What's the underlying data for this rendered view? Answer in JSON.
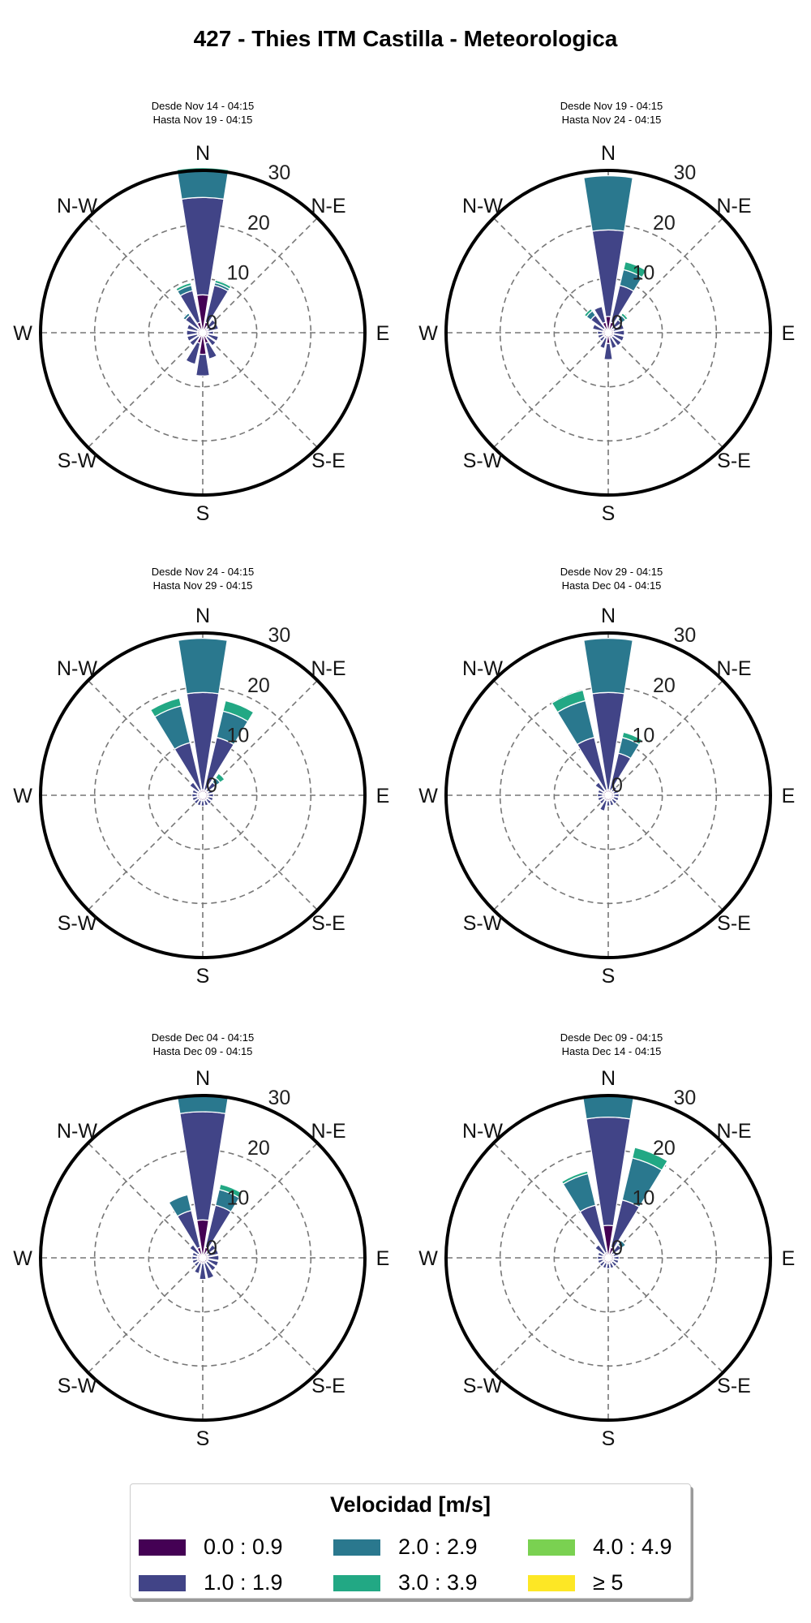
{
  "title": "427 - Thies ITM Castilla - Meteorologica",
  "legend": {
    "title": "Velocidad [m/s]",
    "items": [
      {
        "label": "0.0 : 0.9",
        "color": "#440154"
      },
      {
        "label": "1.0 : 1.9",
        "color": "#414487"
      },
      {
        "label": "2.0 : 2.9",
        "color": "#2a788e"
      },
      {
        "label": "3.0 : 3.9",
        "color": "#22a884"
      },
      {
        "label": "4.0 : 4.9",
        "color": "#7ad151"
      },
      {
        "label": "≥  5",
        "color": "#fde725"
      }
    ]
  },
  "direction_labels": [
    "N",
    "N-E",
    "E",
    "S-E",
    "S",
    "S-W",
    "W",
    "N-W"
  ],
  "radial_ticks": [
    "0",
    "10",
    "20",
    "30"
  ],
  "panels": [
    {
      "desde": "Desde Nov 14 - 04:15",
      "hasta": "Hasta Nov 19 - 04:15"
    },
    {
      "desde": "Desde Nov 19 - 04:15",
      "hasta": "Hasta Nov 24 - 04:15"
    },
    {
      "desde": "Desde Nov 24 - 04:15",
      "hasta": "Hasta Nov 29 - 04:15"
    },
    {
      "desde": "Desde Nov 29 - 04:15",
      "hasta": "Hasta Dec 04 - 04:15"
    },
    {
      "desde": "Desde Dec 04 - 04:15",
      "hasta": "Hasta Dec 09 - 04:15"
    },
    {
      "desde": "Desde Dec 09 - 04:15",
      "hasta": "Hasta Dec 14 - 04:15"
    }
  ],
  "chart_data": [
    {
      "type": "windrose",
      "rmax": 30,
      "rticks": [
        0,
        10,
        20,
        30
      ],
      "speed_bins": [
        "0.0 : 0.9",
        "1.0 : 1.9",
        "2.0 : 2.9",
        "3.0 : 3.9",
        "4.0 : 4.9",
        "≥  5"
      ],
      "directions": [
        {
          "angle": 0,
          "values": [
            7,
            18,
            5,
            0.5
          ]
        },
        {
          "angle": 22.5,
          "values": [
            2,
            7,
            0.5,
            0.5
          ]
        },
        {
          "angle": 45,
          "values": [
            1,
            2
          ]
        },
        {
          "angle": 67.5,
          "values": [
            1,
            2
          ]
        },
        {
          "angle": 90,
          "values": [
            1,
            1
          ]
        },
        {
          "angle": 112.5,
          "values": [
            1,
            2
          ]
        },
        {
          "angle": 135,
          "values": [
            1,
            2
          ]
        },
        {
          "angle": 157.5,
          "values": [
            2,
            3
          ]
        },
        {
          "angle": 180,
          "values": [
            4,
            4
          ]
        },
        {
          "angle": 202.5,
          "values": [
            2,
            4
          ]
        },
        {
          "angle": 225,
          "values": [
            1,
            2
          ]
        },
        {
          "angle": 247.5,
          "values": [
            1,
            2
          ]
        },
        {
          "angle": 270,
          "values": [
            1,
            2
          ]
        },
        {
          "angle": 292.5,
          "values": [
            1,
            2
          ]
        },
        {
          "angle": 315,
          "values": [
            1,
            3,
            0.5
          ]
        },
        {
          "angle": 337.5,
          "values": [
            2,
            6,
            1,
            0.5
          ]
        }
      ]
    },
    {
      "type": "windrose",
      "rmax": 30,
      "rticks": [
        0,
        10,
        20,
        30
      ],
      "speed_bins": [
        "0.0 : 0.9",
        "1.0 : 1.9",
        "2.0 : 2.9",
        "3.0 : 3.9",
        "4.0 : 4.9",
        "≥  5"
      ],
      "directions": [
        {
          "angle": 0,
          "values": [
            3,
            16,
            10
          ]
        },
        {
          "angle": 22.5,
          "values": [
            2,
            7,
            3,
            1.5
          ]
        },
        {
          "angle": 45,
          "values": [
            1,
            2,
            1,
            0.5
          ]
        },
        {
          "angle": 67.5,
          "values": [
            1,
            2
          ]
        },
        {
          "angle": 90,
          "values": [
            1,
            2
          ]
        },
        {
          "angle": 112.5,
          "values": [
            1,
            2
          ]
        },
        {
          "angle": 135,
          "values": [
            1,
            2
          ]
        },
        {
          "angle": 157.5,
          "values": [
            1,
            2
          ]
        },
        {
          "angle": 180,
          "values": [
            2,
            3
          ]
        },
        {
          "angle": 202.5,
          "values": [
            1,
            2
          ]
        },
        {
          "angle": 225,
          "values": [
            1,
            1
          ]
        },
        {
          "angle": 247.5,
          "values": [
            1,
            1
          ]
        },
        {
          "angle": 270,
          "values": [
            1,
            1
          ]
        },
        {
          "angle": 292.5,
          "values": [
            1,
            2
          ]
        },
        {
          "angle": 315,
          "values": [
            1,
            3,
            1,
            0.5
          ]
        },
        {
          "angle": 337.5,
          "values": [
            2,
            3
          ]
        }
      ]
    },
    {
      "type": "windrose",
      "rmax": 30,
      "rticks": [
        0,
        10,
        20,
        30
      ],
      "speed_bins": [
        "0.0 : 0.9",
        "1.0 : 1.9",
        "2.0 : 2.9",
        "3.0 : 3.9",
        "4.0 : 4.9",
        "≥  5"
      ],
      "directions": [
        {
          "angle": 0,
          "values": [
            1,
            18,
            10
          ]
        },
        {
          "angle": 22.5,
          "values": [
            1,
            10,
            5,
            2
          ]
        },
        {
          "angle": 45,
          "values": [
            1,
            2,
            1,
            1
          ]
        },
        {
          "angle": 67.5,
          "values": [
            1,
            1
          ]
        },
        {
          "angle": 90,
          "values": [
            1,
            1
          ]
        },
        {
          "angle": 112.5,
          "values": [
            1,
            1
          ]
        },
        {
          "angle": 135,
          "values": [
            1,
            1
          ]
        },
        {
          "angle": 157.5,
          "values": [
            1,
            1
          ]
        },
        {
          "angle": 180,
          "values": [
            1,
            1
          ]
        },
        {
          "angle": 202.5,
          "values": [
            1,
            1
          ]
        },
        {
          "angle": 225,
          "values": [
            1,
            1
          ]
        },
        {
          "angle": 247.5,
          "values": [
            1,
            1
          ]
        },
        {
          "angle": 270,
          "values": [
            1,
            1
          ]
        },
        {
          "angle": 292.5,
          "values": [
            1,
            1
          ]
        },
        {
          "angle": 315,
          "values": [
            1,
            2
          ]
        },
        {
          "angle": 337.5,
          "values": [
            1,
            9,
            7,
            1.5
          ]
        }
      ]
    },
    {
      "type": "windrose",
      "rmax": 30,
      "rticks": [
        0,
        10,
        20,
        30
      ],
      "speed_bins": [
        "0.0 : 0.9",
        "1.0 : 1.9",
        "2.0 : 2.9",
        "3.0 : 3.9",
        "4.0 : 4.9",
        "≥  5"
      ],
      "directions": [
        {
          "angle": 0,
          "values": [
            1,
            18,
            10
          ]
        },
        {
          "angle": 22.5,
          "values": [
            1,
            7,
            3,
            1
          ]
        },
        {
          "angle": 45,
          "values": [
            1,
            1
          ]
        },
        {
          "angle": 67.5,
          "values": [
            1,
            1
          ]
        },
        {
          "angle": 90,
          "values": [
            1,
            1
          ]
        },
        {
          "angle": 112.5,
          "values": [
            1,
            1
          ]
        },
        {
          "angle": 135,
          "values": [
            1,
            1
          ]
        },
        {
          "angle": 157.5,
          "values": [
            1,
            1
          ]
        },
        {
          "angle": 180,
          "values": [
            1,
            1
          ]
        },
        {
          "angle": 202.5,
          "values": [
            1,
            2
          ]
        },
        {
          "angle": 225,
          "values": [
            1,
            1
          ]
        },
        {
          "angle": 247.5,
          "values": [
            1,
            1
          ]
        },
        {
          "angle": 270,
          "values": [
            1,
            1
          ]
        },
        {
          "angle": 292.5,
          "values": [
            1,
            1
          ]
        },
        {
          "angle": 315,
          "values": [
            1,
            2
          ]
        },
        {
          "angle": 337.5,
          "values": [
            1,
            10,
            7,
            2
          ]
        }
      ]
    },
    {
      "type": "windrose",
      "rmax": 30,
      "rticks": [
        0,
        10,
        20,
        30
      ],
      "speed_bins": [
        "0.0 : 0.9",
        "1.0 : 1.9",
        "2.0 : 2.9",
        "3.0 : 3.9",
        "4.0 : 4.9",
        "≥  5"
      ],
      "directions": [
        {
          "angle": 0,
          "values": [
            7,
            20,
            3
          ]
        },
        {
          "angle": 22.5,
          "values": [
            2,
            8,
            3,
            1
          ]
        },
        {
          "angle": 45,
          "values": [
            1,
            2
          ]
        },
        {
          "angle": 67.5,
          "values": [
            1,
            2
          ]
        },
        {
          "angle": 90,
          "values": [
            1,
            2
          ]
        },
        {
          "angle": 112.5,
          "values": [
            1,
            2
          ]
        },
        {
          "angle": 135,
          "values": [
            1,
            2
          ]
        },
        {
          "angle": 157.5,
          "values": [
            1,
            3
          ]
        },
        {
          "angle": 180,
          "values": [
            1,
            3
          ]
        },
        {
          "angle": 202.5,
          "values": [
            1,
            2
          ]
        },
        {
          "angle": 225,
          "values": [
            1,
            1
          ]
        },
        {
          "angle": 247.5,
          "values": [
            1,
            1
          ]
        },
        {
          "angle": 270,
          "values": [
            1,
            1
          ]
        },
        {
          "angle": 292.5,
          "values": [
            1,
            1
          ]
        },
        {
          "angle": 315,
          "values": [
            1,
            2
          ]
        },
        {
          "angle": 337.5,
          "values": [
            2,
            7,
            3
          ]
        }
      ]
    },
    {
      "type": "windrose",
      "rmax": 30,
      "rticks": [
        0,
        10,
        20,
        30
      ],
      "speed_bins": [
        "0.0 : 0.9",
        "1.0 : 1.9",
        "2.0 : 2.9",
        "3.0 : 3.9",
        "4.0 : 4.9",
        "≥  5"
      ],
      "directions": [
        {
          "angle": 0,
          "values": [
            6,
            20,
            4
          ]
        },
        {
          "angle": 22.5,
          "values": [
            2,
            9,
            8,
            2
          ]
        },
        {
          "angle": 45,
          "values": [
            1,
            2,
            1
          ]
        },
        {
          "angle": 67.5,
          "values": [
            1,
            1
          ]
        },
        {
          "angle": 90,
          "values": [
            1,
            1
          ]
        },
        {
          "angle": 112.5,
          "values": [
            1,
            1
          ]
        },
        {
          "angle": 135,
          "values": [
            1,
            1
          ]
        },
        {
          "angle": 157.5,
          "values": [
            1,
            1
          ]
        },
        {
          "angle": 180,
          "values": [
            1,
            1
          ]
        },
        {
          "angle": 202.5,
          "values": [
            1,
            1
          ]
        },
        {
          "angle": 225,
          "values": [
            1,
            1
          ]
        },
        {
          "angle": 247.5,
          "values": [
            1,
            1
          ]
        },
        {
          "angle": 270,
          "values": [
            1,
            1
          ]
        },
        {
          "angle": 292.5,
          "values": [
            1,
            1
          ]
        },
        {
          "angle": 315,
          "values": [
            1,
            2
          ]
        },
        {
          "angle": 337.5,
          "values": [
            1,
            9,
            6,
            0.5
          ]
        }
      ]
    }
  ]
}
